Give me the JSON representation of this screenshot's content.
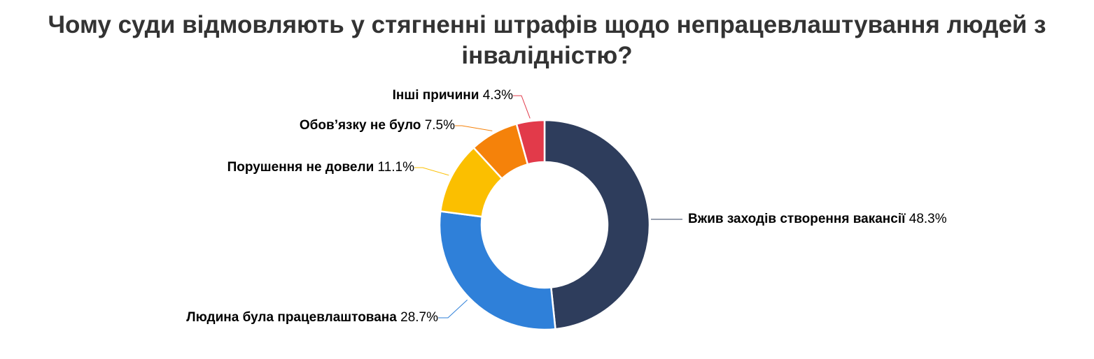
{
  "chart_data": {
    "type": "donut",
    "title": "Чому суди відмовляють у стягненні штрафів щодо непрацевлаштування людей з інвалідністю?",
    "categories": [
      "Вжив заходів створення вакансії",
      "Людина була працевлаштована",
      "Порушення не довели",
      "Обов’язку не було",
      "Інші причини"
    ],
    "values": [
      48.3,
      28.7,
      11.1,
      7.5,
      4.3
    ],
    "value_labels": [
      "48.3%",
      "28.7%",
      "11.1%",
      "7.5%",
      "4.3%"
    ],
    "colors": [
      "#2e3d5c",
      "#2f80d9",
      "#fbbf00",
      "#f5820a",
      "#e23a4a"
    ]
  }
}
